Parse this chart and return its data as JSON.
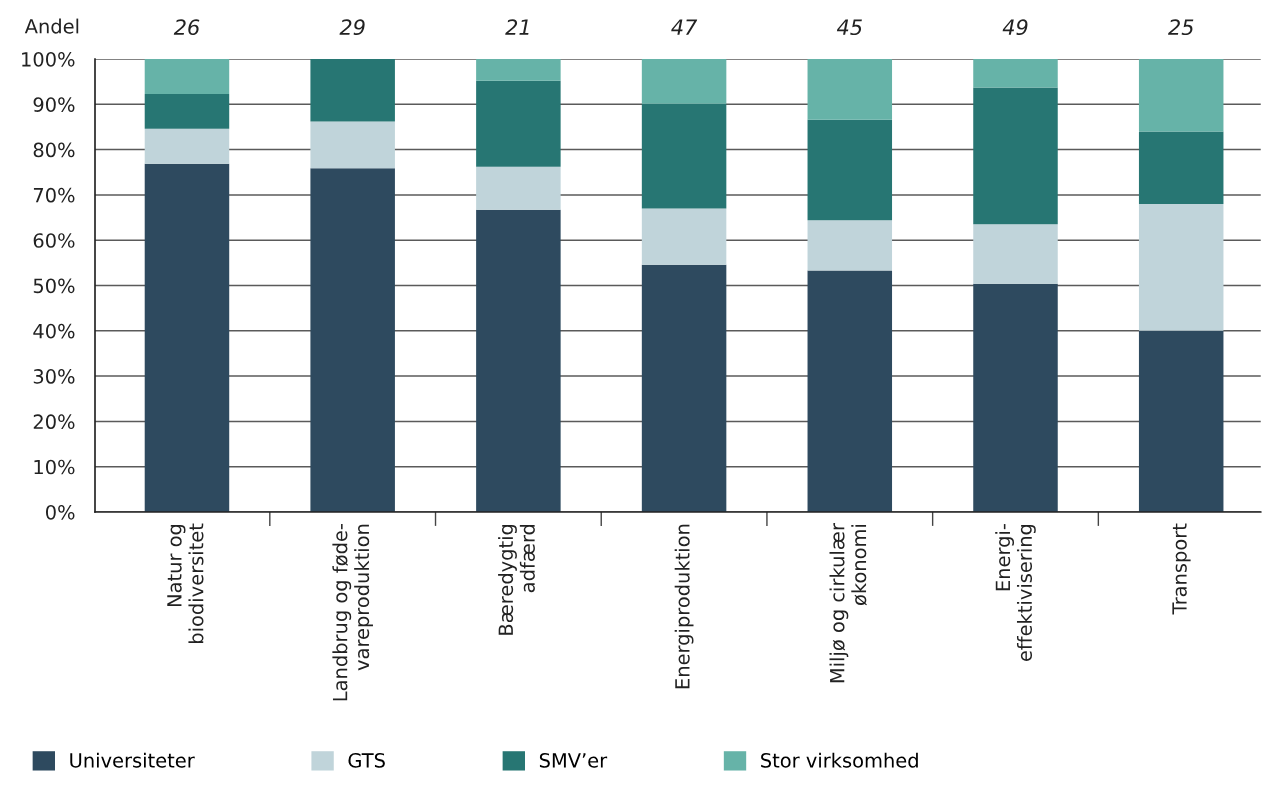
{
  "chart_data": {
    "type": "bar",
    "ylabel": "Andel",
    "stacked": true,
    "grid": "y",
    "legend": "bottom",
    "categories": [
      "Natur og\nbiodiversitet",
      "Landbrug og føde-\nvareproduktion",
      "Bæredygtig\nadfærd",
      "Energiproduktion",
      "Miljø og cirkulær\nøkonomi",
      "Energi-\neffektivisering",
      "Transport"
    ],
    "series": [
      {
        "name": "Universiteter",
        "color": "#2e4a5f",
        "values": [
          76.9,
          75.9,
          66.7,
          54.6,
          53.3,
          50.4,
          40
        ]
      },
      {
        "name": "GTS",
        "color": "#c0d4da",
        "values": [
          7.7,
          10.3,
          9.5,
          12.4,
          11.1,
          13.1,
          28
        ]
      },
      {
        "name": "SMV’er",
        "color": "#277673",
        "values": [
          7.7,
          13.8,
          19.0,
          23.1,
          22.2,
          30.2,
          16
        ]
      },
      {
        "name": "Stor virksomhed",
        "color": "#66b3a8",
        "values": [
          7.7,
          0,
          4.8,
          9.9,
          13.4,
          6.3,
          16
        ]
      }
    ],
    "annotations": [
      "26",
      "29",
      "21",
      "47",
      "45",
      "49",
      "25"
    ],
    "ylim": [
      0,
      100
    ],
    "yticks": [
      {
        "value": 0,
        "label": "0%"
      },
      {
        "value": 10,
        "label": "10%"
      },
      {
        "value": 20,
        "label": "20%"
      },
      {
        "value": 30,
        "label": "30%"
      },
      {
        "value": 40,
        "label": "40%"
      },
      {
        "value": 50,
        "label": "50%"
      },
      {
        "value": 60,
        "label": "60%"
      },
      {
        "value": 70,
        "label": "70%"
      },
      {
        "value": 80,
        "label": "80%"
      },
      {
        "value": 90,
        "label": "90%"
      },
      {
        "value": 100,
        "label": "100%"
      }
    ]
  }
}
